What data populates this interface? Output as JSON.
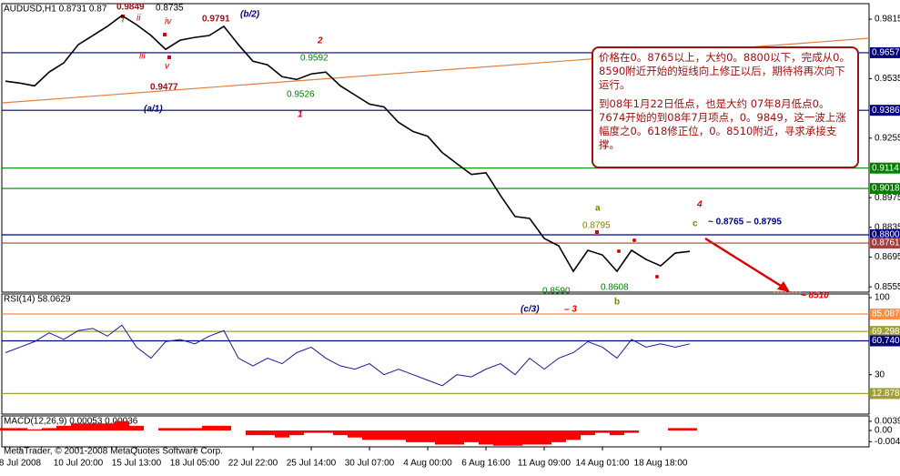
{
  "chart_data": [
    {
      "type": "line",
      "title": "AUDUSD,H1 0.8731 0.87",
      "color": "#000000",
      "categories": [
        null,
        "8 Jul 2008",
        null,
        null,
        null,
        "10 Jul 20:00",
        null,
        null,
        null,
        "15 Jul 13:00",
        null,
        null,
        null,
        "18 Jul 05:00",
        null,
        null,
        null,
        "22 Jul 22:00",
        null,
        null,
        null,
        "25 Jul 14:00",
        null,
        null,
        null,
        "30 Jul 07:00",
        null,
        null,
        null,
        "4 Aug 00:00",
        null,
        null,
        null,
        "6 Aug 16:00",
        null,
        null,
        null,
        "11 Aug 09:00",
        null,
        null,
        null,
        "14 Aug 01:00",
        null,
        null,
        null,
        "18 Aug 18:00",
        null,
        null
      ],
      "values": [
        0.9523,
        0.9514,
        0.9501,
        0.9566,
        0.9609,
        0.9695,
        0.9738,
        0.9781,
        0.9832,
        0.9789,
        0.9738,
        0.9673,
        0.9716,
        0.9729,
        0.9738,
        0.9781,
        0.9695,
        0.9617,
        0.96,
        0.9544,
        0.9531,
        0.9557,
        0.9566,
        0.9501,
        0.9458,
        0.9415,
        0.9402,
        0.9329,
        0.9286,
        0.9264,
        0.9187,
        0.9135,
        0.9084,
        0.9092,
        0.8985,
        0.8886,
        0.8877,
        0.8783,
        0.8748,
        0.8628,
        0.8727,
        0.8705,
        0.8628,
        0.8727,
        0.8684,
        0.8654,
        0.8714,
        0.8722
      ],
      "ylim": [
        0.853,
        0.9888
      ],
      "yticks": [
        0.9815,
        0.9535,
        0.9255,
        0.8975,
        0.8835,
        0.8695,
        0.8555
      ],
      "hlines": [
        {
          "value": 0.9657,
          "color": "#00007f"
        },
        {
          "value": 0.9386,
          "color": "#00007f"
        },
        {
          "value": 0.9114,
          "color": "#007f00"
        },
        {
          "value": 0.9018,
          "color": "#007f00"
        },
        {
          "value": {
            "value": 0.88,
            "label": "0.8800"
          },
          "color": "#00007f"
        },
        {
          "value": 0.8761,
          "color": "#a04040"
        }
      ],
      "annotations": [
        "0.9849",
        "i",
        "ii",
        "iii",
        "iv",
        "v",
        "0.9791",
        "(b/2)",
        "2",
        "0.9592",
        "0.9526",
        "0.9477",
        "1",
        "(a/1)",
        "a",
        "0.8795",
        "4",
        "c",
        "~ 0.8765 – 0.8795",
        "0.8590",
        "0.8608",
        "b",
        "(c/3)",
        "– 3",
        "~ 8510",
        "0.8735"
      ],
      "note": [
        "价格在0。8765以上，大约0。8800以下，完成从0。8590附近开始的短线向上修正以后，期待将再次向下运行。",
        "到08年1月22日低点，也是大约 07年8月低点0。7674开始的到08年7月项点，0。9849，这一波上涨幅度之0。618修正位，0。8510附近，寻求承接支撑。"
      ]
    },
    {
      "type": "line",
      "title": "RSI(14) 58.0629",
      "color": "#1a1aa0",
      "values": [
        50,
        55,
        60,
        68,
        62,
        70,
        72,
        65,
        75,
        55,
        45,
        60,
        62,
        58,
        65,
        70,
        45,
        38,
        45,
        40,
        50,
        55,
        45,
        38,
        35,
        40,
        30,
        35,
        30,
        25,
        20,
        30,
        28,
        35,
        40,
        30,
        45,
        35,
        45,
        50,
        60,
        55,
        45,
        62,
        55,
        58,
        55,
        58
      ],
      "ylim": [
        -5.8,
        103.3
      ],
      "yticks": [
        100,
        30
      ],
      "hlines": [
        {
          "value": 85.0877,
          "color": "#ff8c40"
        },
        {
          "value": 69.2982,
          "color": "#a0a030"
        },
        {
          "value": 60.7407,
          "color": "#00007f"
        },
        {
          "value": 12.8788,
          "color": "#a0a030"
        }
      ]
    },
    {
      "type": "bar",
      "title": "MACD(12,26,9) 0.00053 0.00036",
      "color": "#ff0000",
      "values": [
        0.001,
        0.001,
        0.0005,
        0.001,
        0.002,
        0.003,
        0.003,
        0.003,
        0.004,
        0.002,
        0,
        0.001,
        0.001,
        0.001,
        0.002,
        0.002,
        0,
        -0.002,
        -0.002,
        -0.003,
        -0.002,
        -0.001,
        -0.001,
        -0.002,
        -0.003,
        -0.004,
        -0.004,
        -0.004,
        -0.005,
        -0.005,
        -0.006,
        -0.006,
        -0.005,
        -0.006,
        -0.0065,
        -0.0065,
        -0.006,
        -0.006,
        -0.005,
        -0.004,
        -0.002,
        -0.001,
        -0.002,
        -0.001,
        0,
        0,
        0.001,
        0.001
      ],
      "ylim": [
        -0.007,
        0.0062
      ],
      "yticks": [
        0.00391,
        {
          "value": 0,
          "label": "0.00"
        },
        -0.00479
      ]
    }
  ],
  "footer": "MetaTrader, © 2001-2008 MetaQuotes Software Corp."
}
